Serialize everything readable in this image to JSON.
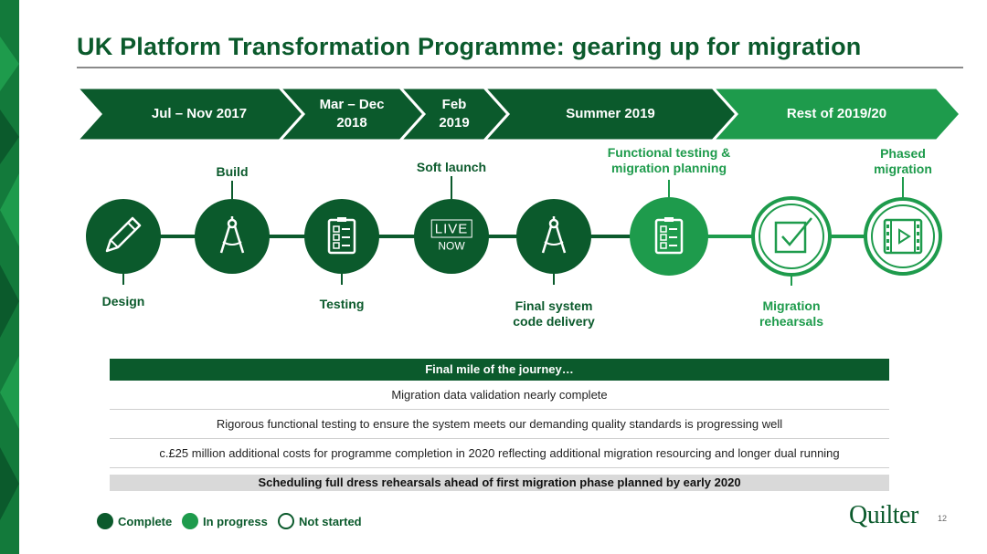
{
  "title": "UK Platform Transformation Programme: gearing up for migration",
  "colors": {
    "complete": "#0b5a2c",
    "in_progress": "#1e9b4c",
    "not_started": "#ffffff",
    "dark_arrow": "#0b5a2c",
    "light_arrow": "#1e9b4c"
  },
  "phases": [
    {
      "label": "Jul – Nov 2017",
      "status": "complete"
    },
    {
      "label": "Mar – Dec\n2018",
      "status": "complete"
    },
    {
      "label": "Feb\n2019",
      "status": "complete"
    },
    {
      "label": "Summer 2019",
      "status": "complete"
    },
    {
      "label": "Rest of 2019/20",
      "status": "in_progress"
    }
  ],
  "milestones": [
    {
      "label": "Design",
      "icon": "pencil-icon",
      "status": "complete",
      "label_pos": "below"
    },
    {
      "label": "Build",
      "icon": "compass-icon",
      "status": "complete",
      "label_pos": "above"
    },
    {
      "label": "Testing",
      "icon": "checklist-icon",
      "status": "complete",
      "label_pos": "below"
    },
    {
      "label": "Soft launch",
      "icon": "live-now-icon",
      "icon_text": [
        "LIVE",
        "NOW"
      ],
      "status": "complete",
      "label_pos": "above"
    },
    {
      "label": "Final system\ncode delivery",
      "icon": "compass-icon",
      "status": "complete",
      "label_pos": "below"
    },
    {
      "label": "Functional testing &\nmigration planning",
      "icon": "checklist-icon",
      "status": "in_progress",
      "label_pos": "above"
    },
    {
      "label": "Migration\nrehearsals",
      "icon": "checkbox-icon",
      "status": "not_started",
      "label_pos": "below"
    },
    {
      "label": "Phased\nmigration",
      "icon": "video-icon",
      "status": "not_started",
      "label_pos": "above"
    }
  ],
  "journey": {
    "header": "Final mile of the journey…",
    "rows": [
      "Migration data validation nearly complete",
      "Rigorous functional testing to ensure the system meets our demanding quality standards is progressing well",
      "c.£25 million additional costs for programme completion in 2020 reflecting additional migration resourcing and longer dual running"
    ],
    "footer": "Scheduling full dress rehearsals ahead of first migration phase planned by early 2020"
  },
  "legend": [
    {
      "label": "Complete",
      "status": "complete"
    },
    {
      "label": "In progress",
      "status": "in_progress"
    },
    {
      "label": "Not started",
      "status": "not_started"
    }
  ],
  "logo": "Quilter",
  "page_number": "12"
}
